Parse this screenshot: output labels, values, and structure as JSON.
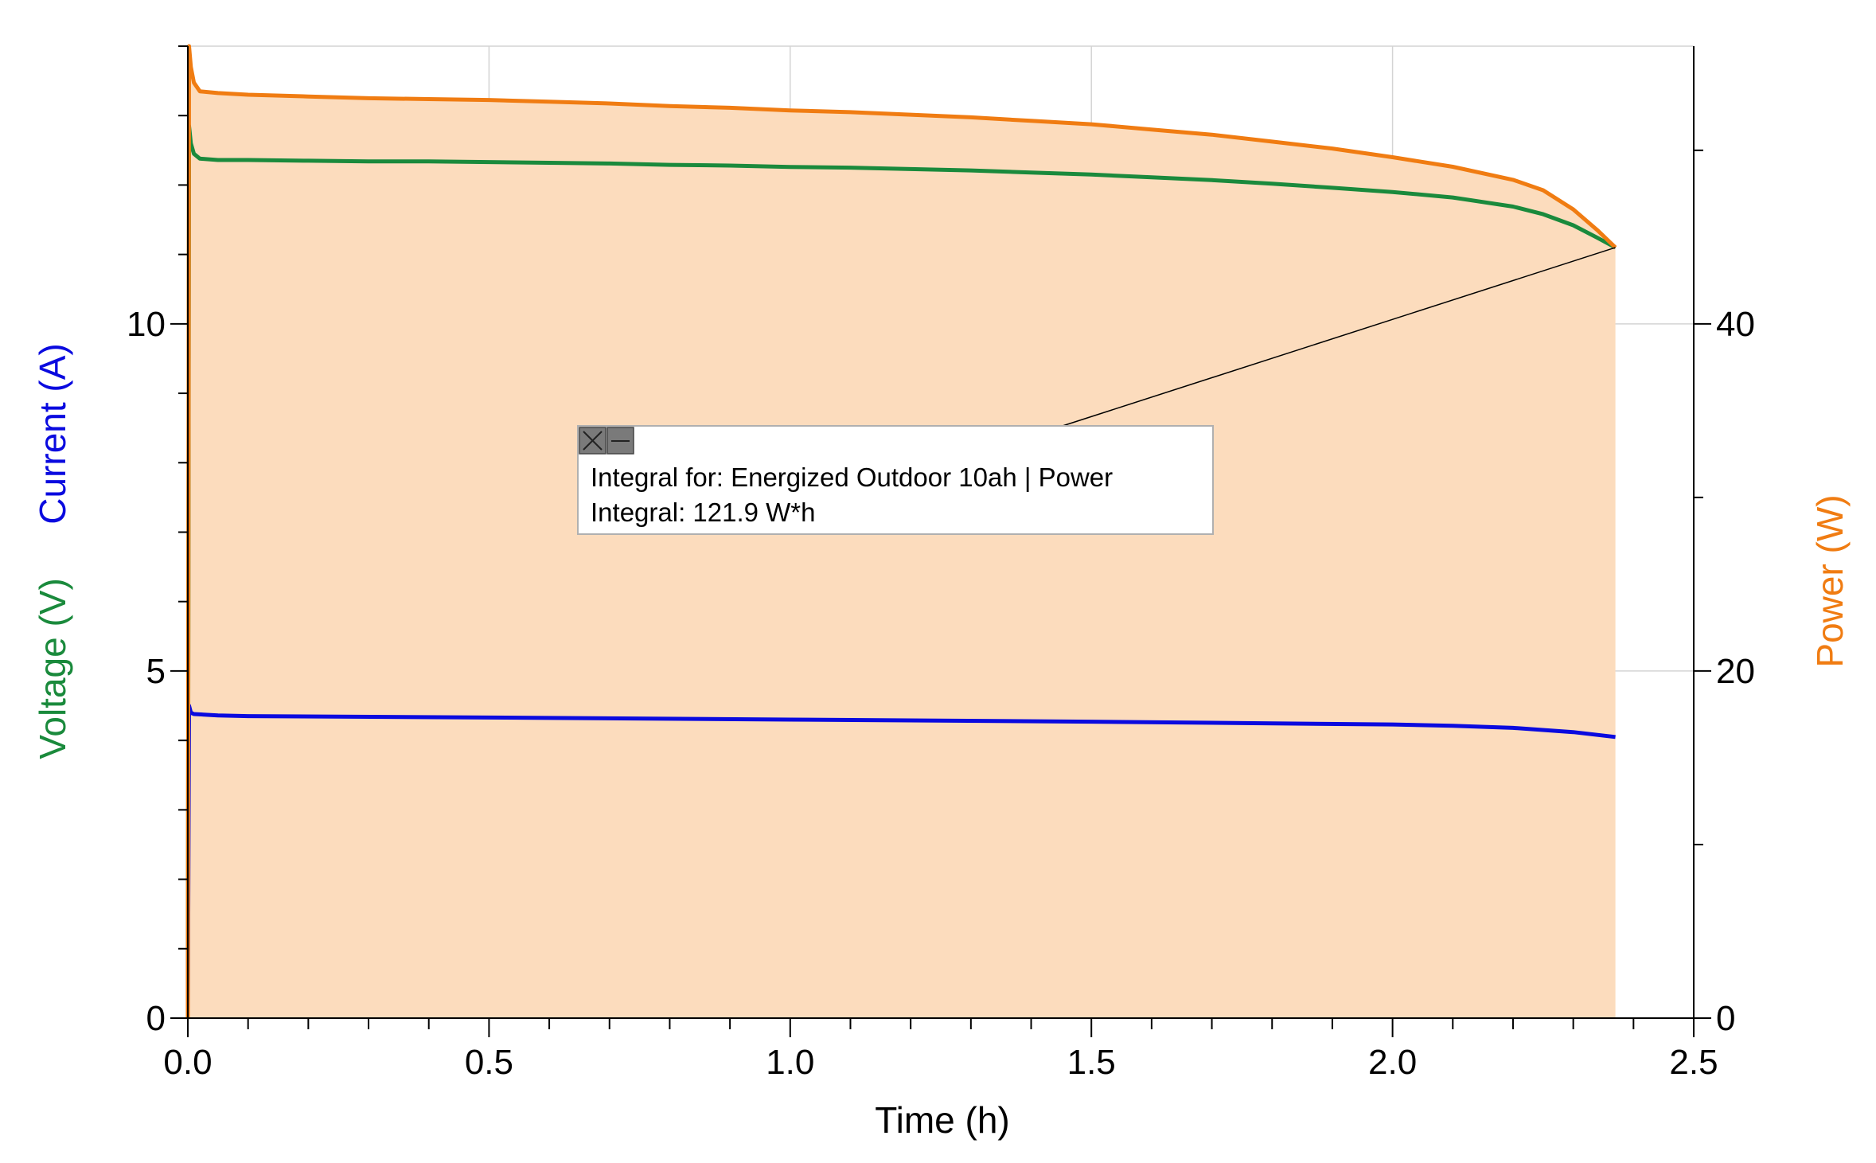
{
  "chart_data": {
    "type": "line",
    "xlabel": "Time (h)",
    "ylabel_left": [
      "Voltage (V)",
      "Current (A)"
    ],
    "ylabel_right": "Power (W)",
    "xlim": [
      0,
      2.5
    ],
    "ylim_left": [
      0,
      14
    ],
    "ylim_right": [
      0,
      56
    ],
    "x_ticks": [
      "0.0",
      "0.5",
      "1.0",
      "1.5",
      "2.0",
      "2.5"
    ],
    "y_left_ticks": [
      "0",
      "5",
      "10"
    ],
    "y_right_ticks": [
      "0",
      "20",
      "40"
    ],
    "grid": true,
    "colors": {
      "voltage": "#1a8a3c",
      "current": "#0a0adf",
      "power": "#f07c12",
      "power_fill": "#fcdcbd"
    },
    "series": [
      {
        "name": "Voltage (V)",
        "axis": "left",
        "x": [
          0.0,
          0.002,
          0.005,
          0.01,
          0.02,
          0.05,
          0.1,
          0.2,
          0.3,
          0.4,
          0.5,
          0.6,
          0.7,
          0.8,
          0.9,
          1.0,
          1.1,
          1.2,
          1.3,
          1.4,
          1.5,
          1.6,
          1.7,
          1.8,
          1.9,
          2.0,
          2.1,
          2.2,
          2.25,
          2.3,
          2.34,
          2.37
        ],
        "values": [
          0.0,
          12.85,
          12.6,
          12.45,
          12.38,
          12.36,
          12.36,
          12.35,
          12.34,
          12.34,
          12.33,
          12.32,
          12.31,
          12.29,
          12.28,
          12.26,
          12.25,
          12.23,
          12.21,
          12.18,
          12.15,
          12.11,
          12.07,
          12.02,
          11.96,
          11.9,
          11.82,
          11.69,
          11.58,
          11.42,
          11.24,
          11.1
        ]
      },
      {
        "name": "Current (A)",
        "axis": "left",
        "x": [
          0.0,
          0.002,
          0.005,
          0.01,
          0.05,
          0.1,
          0.5,
          1.0,
          1.5,
          2.0,
          2.1,
          2.2,
          2.3,
          2.37
        ],
        "values": [
          0.0,
          4.5,
          4.4,
          4.38,
          4.36,
          4.35,
          4.33,
          4.3,
          4.27,
          4.23,
          4.21,
          4.18,
          4.12,
          4.05
        ]
      },
      {
        "name": "Power (W)",
        "axis": "right",
        "x": [
          0.0,
          0.002,
          0.005,
          0.01,
          0.02,
          0.05,
          0.1,
          0.2,
          0.3,
          0.4,
          0.5,
          0.6,
          0.7,
          0.8,
          0.9,
          1.0,
          1.1,
          1.2,
          1.3,
          1.4,
          1.5,
          1.6,
          1.7,
          1.8,
          1.9,
          2.0,
          2.1,
          2.2,
          2.25,
          2.3,
          2.34,
          2.37
        ],
        "values": [
          0.0,
          56.0,
          54.8,
          53.9,
          53.4,
          53.3,
          53.2,
          53.1,
          53.0,
          52.95,
          52.9,
          52.8,
          52.7,
          52.55,
          52.45,
          52.3,
          52.2,
          52.05,
          51.9,
          51.7,
          51.5,
          51.2,
          50.9,
          50.5,
          50.1,
          49.6,
          49.05,
          48.3,
          47.7,
          46.6,
          45.4,
          44.4
        ]
      }
    ],
    "annotation": {
      "line1": "Integral for: Energized Outdoor 10ah | Power",
      "line2": "Integral: 121.9 W*h",
      "anchor": {
        "x": 2.37,
        "y_right": 44.4
      }
    }
  }
}
